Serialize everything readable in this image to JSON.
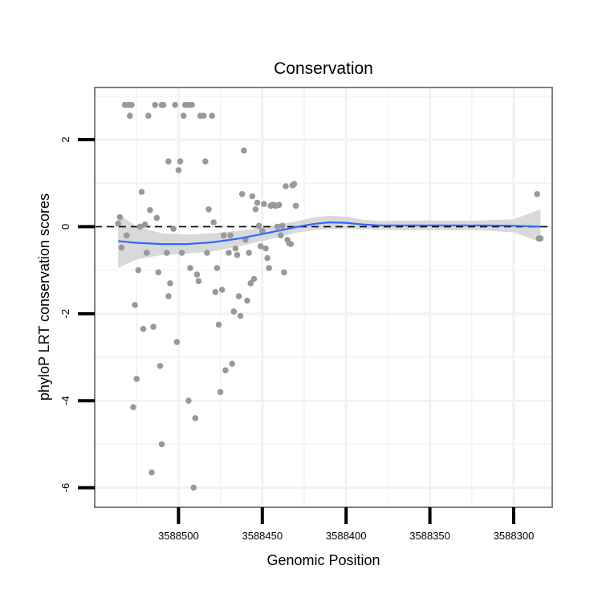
{
  "chart_data": {
    "type": "scatter",
    "title": "Conservation",
    "xlabel": "Genomic Position",
    "ylabel": "phyloP LRT conservation scores",
    "xlim": [
      3588550,
      3588277
    ],
    "ylim": [
      -6.45,
      3.2
    ],
    "x_reversed": true,
    "grid": true,
    "x_ticks": [
      3588500,
      3588450,
      3588400,
      3588350,
      3588300
    ],
    "x_tick_labels": [
      "3588500",
      "3588450",
      "3588400",
      "3588350",
      "3588300"
    ],
    "y_ticks": [
      2,
      0,
      -2,
      -4,
      -6
    ],
    "y_tick_labels": [
      "2",
      "0",
      "-2",
      "-4",
      "-6"
    ],
    "reference_line": {
      "y": 0,
      "style": "dashed"
    },
    "colors": {
      "points": "#999999",
      "smooth_line": "#3366ff",
      "ribbon": "#d9d9d9",
      "grid": "#f2f2f2",
      "frame": "#7f7f7f"
    },
    "series": [
      {
        "name": "scores",
        "points": [
          [
            3588536,
            0.07
          ],
          [
            3588535,
            0.22
          ],
          [
            3588534,
            -0.48
          ],
          [
            3588532,
            2.8
          ],
          [
            3588530,
            2.8
          ],
          [
            3588531,
            -0.2
          ],
          [
            3588529,
            2.55
          ],
          [
            3588528,
            2.8
          ],
          [
            3588527,
            -4.15
          ],
          [
            3588526,
            -1.8
          ],
          [
            3588525,
            -3.5
          ],
          [
            3588524,
            -1.0
          ],
          [
            3588523,
            0.0
          ],
          [
            3588522,
            0.8
          ],
          [
            3588521,
            -2.35
          ],
          [
            3588520,
            0.05
          ],
          [
            3588519,
            -0.6
          ],
          [
            3588518,
            2.55
          ],
          [
            3588517,
            0.38
          ],
          [
            3588516,
            -5.65
          ],
          [
            3588515,
            -2.3
          ],
          [
            3588514,
            2.8
          ],
          [
            3588513,
            0.2
          ],
          [
            3588512,
            -1.05
          ],
          [
            3588511,
            -3.2
          ],
          [
            3588510,
            -5.0
          ],
          [
            3588510,
            2.8
          ],
          [
            3588509,
            2.8
          ],
          [
            3588507,
            -0.6
          ],
          [
            3588506,
            -1.6
          ],
          [
            3588506,
            1.5
          ],
          [
            3588505,
            -1.3
          ],
          [
            3588503,
            -0.05
          ],
          [
            3588502,
            2.8
          ],
          [
            3588501,
            -2.65
          ],
          [
            3588500,
            1.3
          ],
          [
            3588499,
            1.5
          ],
          [
            3588498,
            -0.6
          ],
          [
            3588497,
            2.55
          ],
          [
            3588496,
            2.8
          ],
          [
            3588494,
            -4.0
          ],
          [
            3588494,
            2.8
          ],
          [
            3588493,
            -0.95
          ],
          [
            3588492,
            2.8
          ],
          [
            3588491,
            -6.0
          ],
          [
            3588490,
            -4.4
          ],
          [
            3588489,
            -1.1
          ],
          [
            3588488,
            -1.25
          ],
          [
            3588487,
            2.55
          ],
          [
            3588485,
            2.55
          ],
          [
            3588484,
            1.5
          ],
          [
            3588483,
            -0.6
          ],
          [
            3588482,
            0.4
          ],
          [
            3588480,
            2.55
          ],
          [
            3588479,
            0.1
          ],
          [
            3588478,
            -1.5
          ],
          [
            3588477,
            -0.95
          ],
          [
            3588476,
            -2.25
          ],
          [
            3588475,
            -3.8
          ],
          [
            3588474,
            -1.45
          ],
          [
            3588473,
            -0.2
          ],
          [
            3588472,
            -3.3
          ],
          [
            3588470,
            -0.6
          ],
          [
            3588469,
            -0.2
          ],
          [
            3588468,
            -3.15
          ],
          [
            3588467,
            -1.95
          ],
          [
            3588466,
            -0.5
          ],
          [
            3588465,
            -0.65
          ],
          [
            3588464,
            -1.6
          ],
          [
            3588463,
            -2.05
          ],
          [
            3588462,
            0.75
          ],
          [
            3588461,
            1.75
          ],
          [
            3588460,
            -0.3
          ],
          [
            3588459,
            -1.7
          ],
          [
            3588458,
            -0.6
          ],
          [
            3588457,
            -1.3
          ],
          [
            3588456,
            0.7
          ],
          [
            3588455,
            -1.2
          ],
          [
            3588454,
            0.4
          ],
          [
            3588453,
            0.55
          ],
          [
            3588452,
            0.02
          ],
          [
            3588451,
            -0.45
          ],
          [
            3588450,
            -0.1
          ],
          [
            3588449,
            0.52
          ],
          [
            3588448,
            -0.5
          ],
          [
            3588447,
            -0.72
          ],
          [
            3588446,
            -0.95
          ],
          [
            3588445,
            0.48
          ],
          [
            3588444,
            0.5
          ],
          [
            3588443,
            0.5
          ],
          [
            3588442,
            0.48
          ],
          [
            3588441,
            0.0
          ],
          [
            3588440,
            0.5
          ],
          [
            3588439,
            -0.2
          ],
          [
            3588438,
            0.02
          ],
          [
            3588437,
            -1.05
          ],
          [
            3588436,
            0.93
          ],
          [
            3588435,
            -0.3
          ],
          [
            3588434,
            -0.38
          ],
          [
            3588433,
            -0.4
          ],
          [
            3588432,
            0.95
          ],
          [
            3588431,
            0.98
          ],
          [
            3588430,
            0.48
          ],
          [
            3588286,
            0.75
          ],
          [
            3588285,
            -0.27
          ],
          [
            3588284,
            -0.27
          ]
        ]
      }
    ],
    "smooth": {
      "x": [
        3588536,
        3588525,
        3588510,
        3588495,
        3588480,
        3588465,
        3588450,
        3588440,
        3588430,
        3588420,
        3588410,
        3588400,
        3588390,
        3588380,
        3588370,
        3588355,
        3588340,
        3588320,
        3588300,
        3588284
      ],
      "y": [
        -0.33,
        -0.37,
        -0.4,
        -0.4,
        -0.36,
        -0.28,
        -0.17,
        -0.09,
        -0.01,
        0.06,
        0.1,
        0.09,
        0.05,
        0.03,
        0.03,
        0.03,
        0.03,
        0.03,
        0.02,
        0.0
      ],
      "lower": [
        -0.95,
        -0.75,
        -0.65,
        -0.62,
        -0.57,
        -0.46,
        -0.33,
        -0.24,
        -0.14,
        -0.09,
        -0.05,
        -0.05,
        -0.06,
        -0.07,
        -0.08,
        -0.08,
        -0.08,
        -0.08,
        -0.13,
        -0.35
      ],
      "upper": [
        0.29,
        0.01,
        -0.15,
        -0.18,
        -0.15,
        -0.1,
        -0.01,
        0.06,
        0.12,
        0.21,
        0.25,
        0.23,
        0.16,
        0.13,
        0.14,
        0.14,
        0.14,
        0.14,
        0.17,
        0.4
      ]
    }
  }
}
